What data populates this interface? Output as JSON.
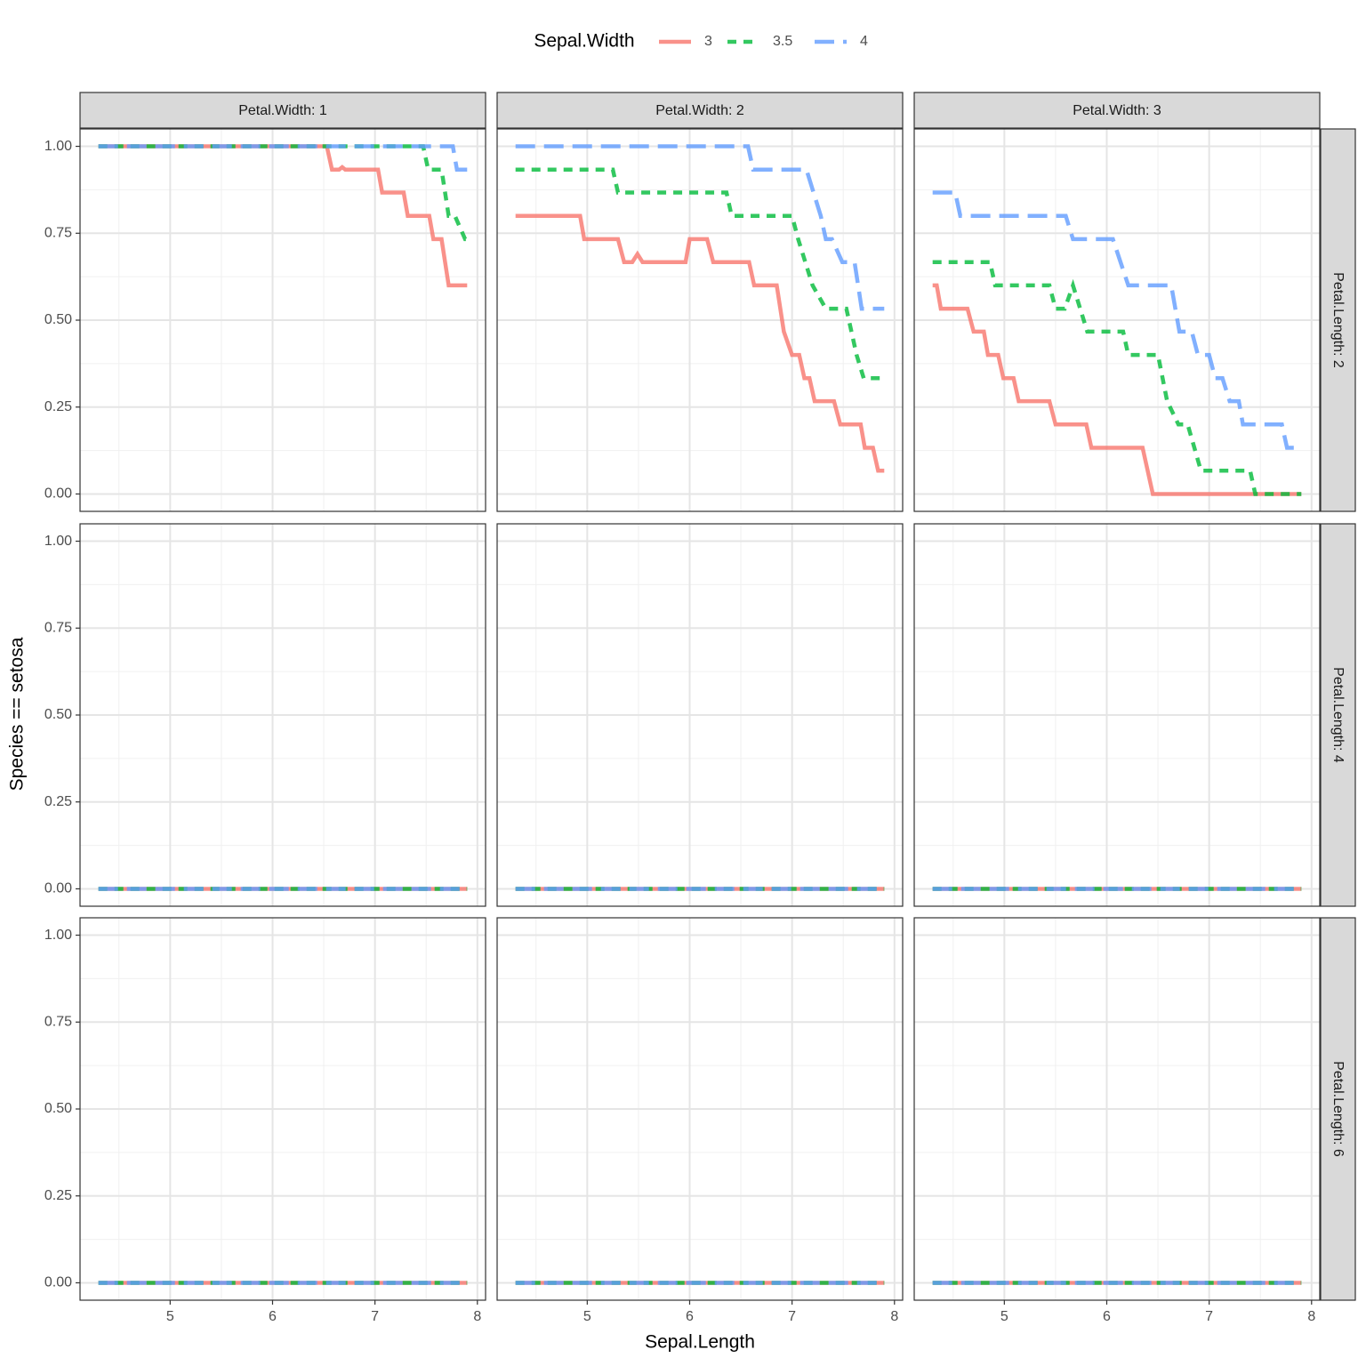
{
  "chart_data": {
    "type": "line",
    "legend_title": "Sepal.Width",
    "legend_position": "top",
    "x_label": "Sepal.Length",
    "y_label": "Species == setosa",
    "xlim": [
      4.12,
      8.08
    ],
    "ylim": [
      -0.05,
      1.05
    ],
    "xticks": [
      5,
      6,
      7,
      8
    ],
    "yticks": [
      {
        "value": 0,
        "label": "0.00"
      },
      {
        "value": 0.25,
        "label": "0.25"
      },
      {
        "value": 0.5,
        "label": "0.50"
      },
      {
        "value": 0.75,
        "label": "0.75"
      },
      {
        "value": 1,
        "label": "1.00"
      }
    ],
    "grid": true,
    "series": [
      {
        "name": "3",
        "color": "#F8766D",
        "linetype": "solid"
      },
      {
        "name": "3.5",
        "color": "#00BA38",
        "linetype": "dashed"
      },
      {
        "name": "4",
        "color": "#619CFF",
        "linetype": "longdash"
      }
    ],
    "columns": [
      "Petal.Width: 1",
      "Petal.Width: 2",
      "Petal.Width: 3"
    ],
    "rows": [
      "Petal.Length: 2",
      "Petal.Length: 4",
      "Petal.Length: 6"
    ],
    "panels": [
      [
        {
          "series": [
            {
              "x": [
                4.3,
                6.53,
                6.58,
                6.65,
                6.68,
                6.71,
                7.03,
                7.07,
                7.28,
                7.32,
                7.53,
                7.57,
                7.65,
                7.72,
                7.9
              ],
              "values": [
                1,
                1,
                0.933,
                0.933,
                0.94,
                0.933,
                0.933,
                0.867,
                0.867,
                0.8,
                0.8,
                0.733,
                0.733,
                0.6,
                0.6
              ]
            },
            {
              "x": [
                4.3,
                7.47,
                7.52,
                7.65,
                7.72,
                7.78,
                7.88,
                7.9
              ],
              "values": [
                1,
                1,
                0.933,
                0.933,
                0.8,
                0.8,
                0.733,
                0.733
              ]
            },
            {
              "x": [
                4.3,
                7.76,
                7.8,
                7.9
              ],
              "values": [
                1,
                1,
                0.933,
                0.933
              ]
            }
          ]
        },
        {
          "series": [
            {
              "x": [
                4.3,
                4.93,
                4.97,
                5.3,
                5.36,
                5.44,
                5.49,
                5.54,
                5.96,
                6.0,
                6.17,
                6.23,
                6.58,
                6.63,
                6.85,
                6.92,
                7.0,
                7.07,
                7.12,
                7.17,
                7.22,
                7.41,
                7.47,
                7.67,
                7.71,
                7.79,
                7.84,
                7.9
              ],
              "values": [
                0.8,
                0.8,
                0.733,
                0.733,
                0.667,
                0.667,
                0.69,
                0.667,
                0.667,
                0.733,
                0.733,
                0.667,
                0.667,
                0.6,
                0.6,
                0.467,
                0.4,
                0.4,
                0.333,
                0.333,
                0.267,
                0.267,
                0.2,
                0.2,
                0.133,
                0.133,
                0.067,
                0.067
              ]
            },
            {
              "x": [
                4.3,
                5.25,
                5.3,
                6.36,
                6.41,
                7.0,
                7.06,
                7.2,
                7.33,
                7.53,
                7.63,
                7.7,
                7.9
              ],
              "values": [
                0.933,
                0.933,
                0.867,
                0.867,
                0.8,
                0.8,
                0.733,
                0.6,
                0.533,
                0.533,
                0.4,
                0.333,
                0.333
              ]
            },
            {
              "x": [
                4.3,
                6.57,
                6.62,
                7.14,
                7.28,
                7.33,
                7.39,
                7.49,
                7.61,
                7.68,
                7.9
              ],
              "values": [
                1,
                1,
                0.933,
                0.933,
                0.8,
                0.733,
                0.733,
                0.667,
                0.667,
                0.533,
                0.533
              ]
            }
          ]
        },
        {
          "series": [
            {
              "x": [
                4.3,
                4.34,
                4.38,
                4.64,
                4.7,
                4.8,
                4.84,
                4.94,
                4.99,
                5.09,
                5.14,
                5.44,
                5.5,
                5.8,
                5.85,
                6.35,
                6.45,
                7.9
              ],
              "values": [
                0.6,
                0.6,
                0.533,
                0.533,
                0.467,
                0.467,
                0.4,
                0.4,
                0.333,
                0.333,
                0.267,
                0.267,
                0.2,
                0.2,
                0.133,
                0.133,
                0,
                0
              ]
            },
            {
              "x": [
                4.3,
                4.86,
                4.91,
                5.44,
                5.5,
                5.59,
                5.67,
                5.81,
                6.16,
                6.21,
                6.5,
                6.59,
                6.7,
                6.79,
                6.92,
                7.4,
                7.45,
                7.9
              ],
              "values": [
                0.667,
                0.667,
                0.6,
                0.6,
                0.533,
                0.533,
                0.6,
                0.467,
                0.467,
                0.4,
                0.4,
                0.267,
                0.2,
                0.2,
                0.067,
                0.067,
                0,
                0
              ]
            },
            {
              "x": [
                4.3,
                4.52,
                4.57,
                5.6,
                5.67,
                6.06,
                6.21,
                6.63,
                6.71,
                6.83,
                6.89,
                7.0,
                7.06,
                7.13,
                7.2,
                7.29,
                7.33,
                7.71,
                7.76,
                7.9
              ],
              "values": [
                0.867,
                0.867,
                0.8,
                0.8,
                0.733,
                0.733,
                0.6,
                0.6,
                0.467,
                0.467,
                0.4,
                0.4,
                0.333,
                0.333,
                0.267,
                0.267,
                0.2,
                0.2,
                0.133,
                0.133
              ]
            }
          ]
        }
      ],
      [
        {
          "series": [
            {
              "x": [
                4.3,
                7.9
              ],
              "values": [
                0,
                0
              ]
            },
            {
              "x": [
                4.3,
                7.9
              ],
              "values": [
                0,
                0
              ]
            },
            {
              "x": [
                4.3,
                7.9
              ],
              "values": [
                0,
                0
              ]
            }
          ]
        },
        {
          "series": [
            {
              "x": [
                4.3,
                7.9
              ],
              "values": [
                0,
                0
              ]
            },
            {
              "x": [
                4.3,
                7.9
              ],
              "values": [
                0,
                0
              ]
            },
            {
              "x": [
                4.3,
                7.9
              ],
              "values": [
                0,
                0
              ]
            }
          ]
        },
        {
          "series": [
            {
              "x": [
                4.3,
                7.9
              ],
              "values": [
                0,
                0
              ]
            },
            {
              "x": [
                4.3,
                7.9
              ],
              "values": [
                0,
                0
              ]
            },
            {
              "x": [
                4.3,
                7.9
              ],
              "values": [
                0,
                0
              ]
            }
          ]
        }
      ],
      [
        {
          "series": [
            {
              "x": [
                4.3,
                7.9
              ],
              "values": [
                0,
                0
              ]
            },
            {
              "x": [
                4.3,
                7.9
              ],
              "values": [
                0,
                0
              ]
            },
            {
              "x": [
                4.3,
                7.9
              ],
              "values": [
                0,
                0
              ]
            }
          ]
        },
        {
          "series": [
            {
              "x": [
                4.3,
                7.9
              ],
              "values": [
                0,
                0
              ]
            },
            {
              "x": [
                4.3,
                7.9
              ],
              "values": [
                0,
                0
              ]
            },
            {
              "x": [
                4.3,
                7.9
              ],
              "values": [
                0,
                0
              ]
            }
          ]
        },
        {
          "series": [
            {
              "x": [
                4.3,
                7.9
              ],
              "values": [
                0,
                0
              ]
            },
            {
              "x": [
                4.3,
                7.9
              ],
              "values": [
                0,
                0
              ]
            },
            {
              "x": [
                4.3,
                7.9
              ],
              "values": [
                0,
                0
              ]
            }
          ]
        }
      ]
    ]
  }
}
